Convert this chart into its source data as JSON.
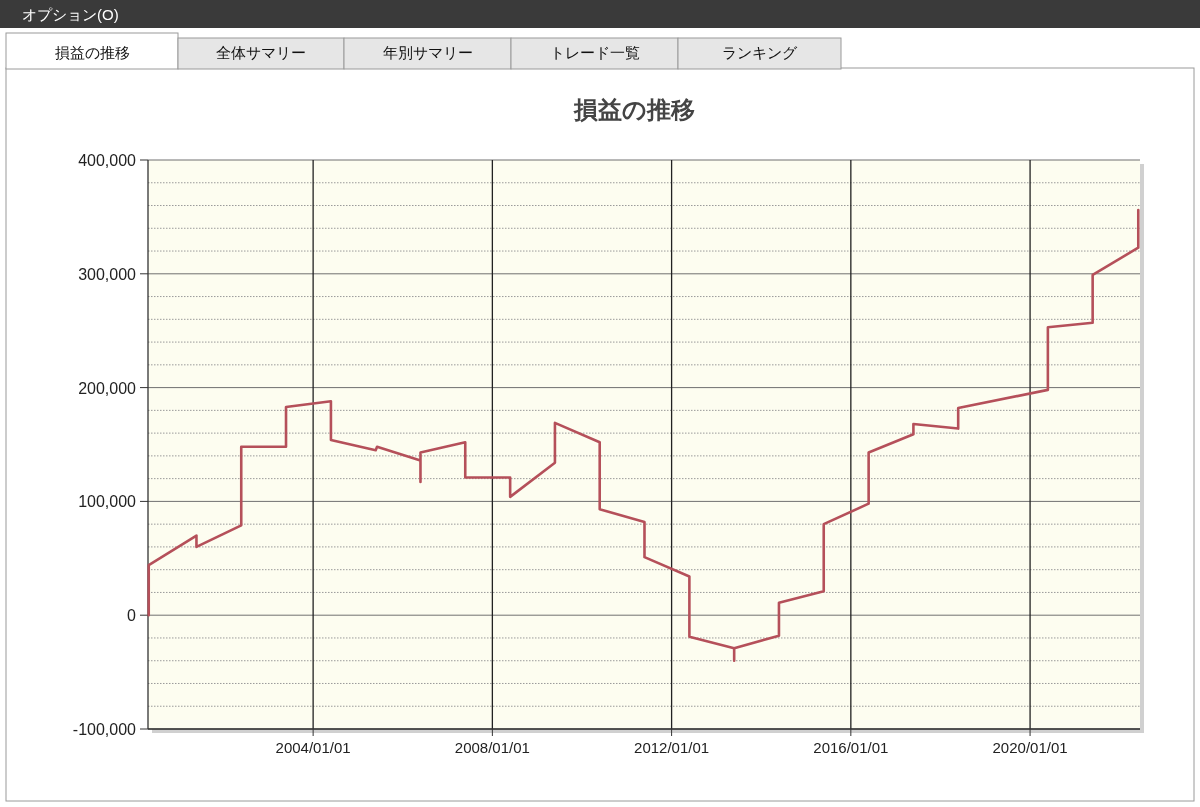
{
  "chart_data": {
    "type": "line",
    "title": "損益の推移",
    "annotations": [
      "オプション(O)",
      "損益の推移",
      "全体サマリー",
      "年別サマリー",
      "トレード一覧",
      "ランキング"
    ],
    "series": [
      {
        "color": "#b5505a",
        "x": [
          "2000-05-01",
          "2000-05-01",
          "2001-05-25",
          "2001-05-25",
          "2002-05-25",
          "2002-05-25",
          "2003-05-25",
          "2003-05-25",
          "2004-05-25",
          "2004-05-25",
          "2005-05-25",
          "2005-06-05",
          "2006-05-25",
          "2006-05-25",
          "2006-05-25",
          "2007-05-25",
          "2007-05-25",
          "2008-05-25",
          "2008-05-25",
          "2009-05-25",
          "2009-05-25",
          "2010-05-25",
          "2010-05-25",
          "2011-05-25",
          "2011-05-25",
          "2012-05-25",
          "2012-05-25",
          "2013-05-25",
          "2013-05-25",
          "2013-05-25",
          "2014-05-25",
          "2014-05-25",
          "2015-05-25",
          "2015-05-25",
          "2016-05-25",
          "2016-05-25",
          "2017-05-25",
          "2017-05-25",
          "2018-05-25",
          "2018-05-25",
          "2020-05-25",
          "2020-05-25",
          "2021-05-25",
          "2021-05-25",
          "2022-06-01",
          "2022-06-01"
        ],
        "values": [
          0,
          44000,
          70000,
          60000,
          79000,
          148000,
          148000,
          183000,
          188000,
          154000,
          145000,
          148000,
          136000,
          117000,
          143000,
          152000,
          121000,
          121000,
          104000,
          134000,
          169000,
          152000,
          93000,
          82000,
          51000,
          34000,
          -19000,
          -29000,
          -40000,
          -29000,
          -18000,
          11000,
          21000,
          80000,
          98000,
          143000,
          159000,
          168000,
          164000,
          182000,
          198000,
          253000,
          257000,
          299000,
          323000,
          356000
        ]
      }
    ],
    "xlim": [
      "2000-04-25",
      "2022-06-15"
    ],
    "xticks": [
      {
        "value": "2004-01-01",
        "label": "2004/01/01"
      },
      {
        "value": "2008-01-01",
        "label": "2008/01/01"
      },
      {
        "value": "2012-01-01",
        "label": "2012/01/01"
      },
      {
        "value": "2016-01-01",
        "label": "2016/01/01"
      },
      {
        "value": "2020-01-01",
        "label": "2020/01/01"
      }
    ],
    "ylim": [
      -100000,
      400000
    ],
    "yticks": [
      {
        "value": -100000,
        "label": "-100,000"
      },
      {
        "value": -80000,
        "label": null
      },
      {
        "value": -60000,
        "label": null
      },
      {
        "value": -40000,
        "label": null
      },
      {
        "value": -20000,
        "label": null
      },
      {
        "value": 0,
        "label": "0"
      },
      {
        "value": 20000,
        "label": null
      },
      {
        "value": 40000,
        "label": null
      },
      {
        "value": 60000,
        "label": null
      },
      {
        "value": 80000,
        "label": null
      },
      {
        "value": 100000,
        "label": "100,000"
      },
      {
        "value": 120000,
        "label": null
      },
      {
        "value": 140000,
        "label": null
      },
      {
        "value": 160000,
        "label": null
      },
      {
        "value": 180000,
        "label": null
      },
      {
        "value": 200000,
        "label": "200,000"
      },
      {
        "value": 220000,
        "label": null
      },
      {
        "value": 240000,
        "label": null
      },
      {
        "value": 260000,
        "label": null
      },
      {
        "value": 280000,
        "label": null
      },
      {
        "value": 300000,
        "label": "300,000"
      },
      {
        "value": 320000,
        "label": null
      },
      {
        "value": 340000,
        "label": null
      },
      {
        "value": 360000,
        "label": null
      },
      {
        "value": 380000,
        "label": null
      },
      {
        "value": 400000,
        "label": "400,000"
      }
    ],
    "grid": true
  }
}
